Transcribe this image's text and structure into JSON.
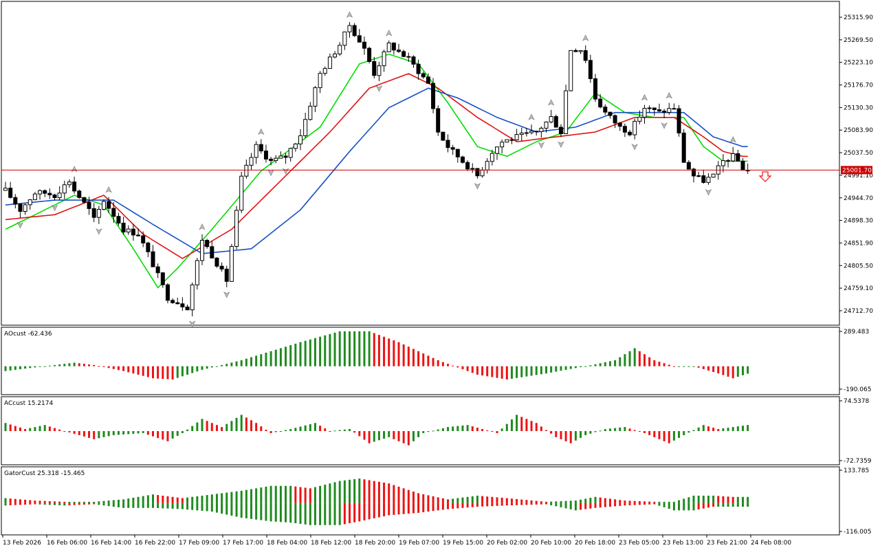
{
  "chart_data": [
    {
      "type": "candlestick",
      "ylim": [
        24690,
        25340
      ],
      "y_ticks": [
        "25315.90",
        "25269.50",
        "25223.10",
        "25176.70",
        "25130.30",
        "25083.90",
        "25037.50",
        "24991.10",
        "24944.70",
        "24898.30",
        "24851.90",
        "24805.50",
        "24759.10",
        "24712.70"
      ],
      "current_price_label": "25001.70",
      "current_price": 25001.7,
      "x_ticks": [
        "13 Feb 2026",
        "16 Feb 06:00",
        "16 Feb 14:00",
        "16 Feb 22:00",
        "17 Feb 09:00",
        "17 Feb 17:00",
        "18 Feb 04:00",
        "18 Feb 12:00",
        "18 Feb 20:00",
        "19 Feb 07:00",
        "19 Feb 15:00",
        "20 Feb 02:00",
        "20 Feb 10:00",
        "20 Feb 18:00",
        "23 Feb 05:00",
        "23 Feb 13:00",
        "23 Feb 21:00",
        "24 Feb 08:00"
      ],
      "anchors": [
        [
          0,
          24960
        ],
        [
          3,
          24920
        ],
        [
          6,
          24955
        ],
        [
          8,
          24955
        ],
        [
          10,
          24950
        ],
        [
          13,
          24980
        ],
        [
          14,
          24960
        ],
        [
          17,
          24920
        ],
        [
          18,
          24900
        ],
        [
          20,
          24940
        ],
        [
          24,
          24880
        ],
        [
          27,
          24870
        ],
        [
          29,
          24830
        ],
        [
          33,
          24740
        ],
        [
          35,
          24730
        ],
        [
          37,
          24720
        ],
        [
          40,
          24860
        ],
        [
          43,
          24810
        ],
        [
          45,
          24775
        ],
        [
          48,
          24985
        ],
        [
          51,
          25050
        ],
        [
          54,
          25020
        ],
        [
          57,
          25030
        ],
        [
          60,
          25075
        ],
        [
          64,
          25200
        ],
        [
          68,
          25260
        ],
        [
          70,
          25300
        ],
        [
          73,
          25250
        ],
        [
          75,
          25200
        ],
        [
          78,
          25260
        ],
        [
          82,
          25230
        ],
        [
          86,
          25180
        ],
        [
          88,
          25080
        ],
        [
          90,
          25050
        ],
        [
          93,
          25020
        ],
        [
          96,
          24990
        ],
        [
          99,
          25040
        ],
        [
          101,
          25060
        ],
        [
          104,
          25070
        ],
        [
          108,
          25080
        ],
        [
          111,
          25110
        ],
        [
          113,
          25080
        ],
        [
          115,
          25250
        ],
        [
          117,
          25250
        ],
        [
          118,
          25230
        ],
        [
          120,
          25150
        ],
        [
          122,
          25120
        ],
        [
          125,
          25090
        ],
        [
          127,
          25080
        ],
        [
          130,
          25130
        ],
        [
          133,
          25120
        ],
        [
          136,
          25130
        ],
        [
          138,
          25020
        ],
        [
          140,
          24990
        ],
        [
          142,
          24980
        ],
        [
          144,
          24990
        ],
        [
          146,
          25020
        ],
        [
          148,
          25030
        ],
        [
          149,
          25020
        ],
        [
          150,
          25005
        ],
        [
          151,
          25001.7
        ]
      ],
      "green_line": [
        [
          0,
          24880
        ],
        [
          8,
          24920
        ],
        [
          14,
          24950
        ],
        [
          20,
          24930
        ],
        [
          26,
          24840
        ],
        [
          31,
          24760
        ],
        [
          35,
          24800
        ],
        [
          42,
          24880
        ],
        [
          52,
          25000
        ],
        [
          64,
          25090
        ],
        [
          72,
          25220
        ],
        [
          78,
          25240
        ],
        [
          84,
          25220
        ],
        [
          90,
          25140
        ],
        [
          96,
          25050
        ],
        [
          102,
          25030
        ],
        [
          108,
          25060
        ],
        [
          114,
          25080
        ],
        [
          120,
          25160
        ],
        [
          126,
          25120
        ],
        [
          132,
          25110
        ],
        [
          138,
          25110
        ],
        [
          142,
          25050
        ],
        [
          146,
          25020
        ],
        [
          150,
          25020
        ]
      ],
      "red_line": [
        [
          0,
          24900
        ],
        [
          10,
          24910
        ],
        [
          20,
          24950
        ],
        [
          28,
          24870
        ],
        [
          36,
          24820
        ],
        [
          46,
          24880
        ],
        [
          58,
          25000
        ],
        [
          66,
          25080
        ],
        [
          74,
          25170
        ],
        [
          82,
          25200
        ],
        [
          88,
          25170
        ],
        [
          96,
          25110
        ],
        [
          104,
          25060
        ],
        [
          112,
          25070
        ],
        [
          120,
          25080
        ],
        [
          128,
          25110
        ],
        [
          136,
          25110
        ],
        [
          142,
          25070
        ],
        [
          146,
          25040
        ],
        [
          150,
          25030
        ]
      ],
      "blue_line": [
        [
          0,
          24930
        ],
        [
          10,
          24940
        ],
        [
          22,
          24940
        ],
        [
          30,
          24890
        ],
        [
          40,
          24830
        ],
        [
          50,
          24840
        ],
        [
          60,
          24920
        ],
        [
          70,
          25040
        ],
        [
          78,
          25130
        ],
        [
          86,
          25170
        ],
        [
          92,
          25150
        ],
        [
          100,
          25110
        ],
        [
          108,
          25080
        ],
        [
          116,
          25090
        ],
        [
          124,
          25120
        ],
        [
          132,
          25120
        ],
        [
          138,
          25120
        ],
        [
          144,
          25070
        ],
        [
          150,
          25050
        ]
      ]
    },
    {
      "type": "histogram",
      "title": "AOcust -62.436",
      "y_ticks": [
        "289.483",
        "-190.065"
      ],
      "ylim": [
        -190.065,
        289.483
      ],
      "anchors": [
        [
          0,
          -40
        ],
        [
          8,
          0
        ],
        [
          14,
          30
        ],
        [
          18,
          10
        ],
        [
          24,
          -40
        ],
        [
          30,
          -100
        ],
        [
          34,
          -110
        ],
        [
          40,
          -30
        ],
        [
          48,
          50
        ],
        [
          60,
          200
        ],
        [
          68,
          290
        ],
        [
          74,
          290
        ],
        [
          80,
          200
        ],
        [
          88,
          50
        ],
        [
          96,
          -70
        ],
        [
          102,
          -110
        ],
        [
          110,
          -60
        ],
        [
          118,
          0
        ],
        [
          124,
          50
        ],
        [
          128,
          150
        ],
        [
          132,
          50
        ],
        [
          136,
          0
        ],
        [
          140,
          0
        ],
        [
          145,
          -60
        ],
        [
          148,
          -100
        ],
        [
          151,
          -62
        ]
      ],
      "colors": {
        "up": "#1e8a1e",
        "down": "#ee1111"
      }
    },
    {
      "type": "histogram",
      "title": "ACcust 15.2174",
      "y_ticks": [
        "74.5378",
        "-72.7359"
      ],
      "ylim": [
        -72.7359,
        74.5378
      ],
      "anchors": [
        [
          0,
          20
        ],
        [
          4,
          5
        ],
        [
          8,
          15
        ],
        [
          12,
          0
        ],
        [
          18,
          -20
        ],
        [
          22,
          -10
        ],
        [
          28,
          -5
        ],
        [
          33,
          -25
        ],
        [
          36,
          -5
        ],
        [
          40,
          30
        ],
        [
          44,
          10
        ],
        [
          48,
          40
        ],
        [
          51,
          20
        ],
        [
          54,
          -5
        ],
        [
          58,
          5
        ],
        [
          63,
          20
        ],
        [
          66,
          0
        ],
        [
          70,
          5
        ],
        [
          74,
          -30
        ],
        [
          78,
          -15
        ],
        [
          82,
          -35
        ],
        [
          85,
          -5
        ],
        [
          90,
          10
        ],
        [
          94,
          15
        ],
        [
          97,
          5
        ],
        [
          100,
          -5
        ],
        [
          104,
          40
        ],
        [
          108,
          20
        ],
        [
          112,
          -15
        ],
        [
          115,
          -30
        ],
        [
          118,
          -10
        ],
        [
          122,
          5
        ],
        [
          126,
          10
        ],
        [
          130,
          -5
        ],
        [
          135,
          -30
        ],
        [
          138,
          -10
        ],
        [
          142,
          15
        ],
        [
          145,
          5
        ],
        [
          151,
          15
        ]
      ],
      "colors": {
        "up": "#1e8a1e",
        "down": "#ee1111"
      }
    },
    {
      "type": "histogram",
      "title": "GatorCust 25.318 -15.465",
      "y_ticks": [
        "133.785",
        "-116.005"
      ],
      "ylim": [
        -116.005,
        133.785
      ],
      "upper_anchors": [
        [
          0,
          20
        ],
        [
          6,
          10
        ],
        [
          12,
          5
        ],
        [
          18,
          5
        ],
        [
          24,
          15
        ],
        [
          30,
          35
        ],
        [
          36,
          20
        ],
        [
          42,
          35
        ],
        [
          48,
          50
        ],
        [
          54,
          70
        ],
        [
          58,
          70
        ],
        [
          62,
          60
        ],
        [
          68,
          90
        ],
        [
          72,
          100
        ],
        [
          78,
          80
        ],
        [
          84,
          40
        ],
        [
          90,
          15
        ],
        [
          96,
          30
        ],
        [
          102,
          20
        ],
        [
          110,
          5
        ],
        [
          116,
          10
        ],
        [
          120,
          25
        ],
        [
          126,
          10
        ],
        [
          132,
          5
        ],
        [
          136,
          5
        ],
        [
          140,
          30
        ],
        [
          144,
          30
        ],
        [
          148,
          25
        ],
        [
          151,
          25
        ]
      ],
      "lower_anchors": [
        [
          0,
          -10
        ],
        [
          6,
          -5
        ],
        [
          12,
          -10
        ],
        [
          18,
          -5
        ],
        [
          24,
          -20
        ],
        [
          30,
          -20
        ],
        [
          36,
          -25
        ],
        [
          42,
          -35
        ],
        [
          48,
          -60
        ],
        [
          54,
          -75
        ],
        [
          58,
          -80
        ],
        [
          62,
          -90
        ],
        [
          68,
          -90
        ],
        [
          72,
          -75
        ],
        [
          78,
          -50
        ],
        [
          84,
          -40
        ],
        [
          90,
          -25
        ],
        [
          96,
          -15
        ],
        [
          102,
          -10
        ],
        [
          110,
          -5
        ],
        [
          116,
          -30
        ],
        [
          120,
          -20
        ],
        [
          126,
          -10
        ],
        [
          132,
          -5
        ],
        [
          136,
          -30
        ],
        [
          140,
          -30
        ],
        [
          144,
          -15
        ],
        [
          148,
          -15
        ],
        [
          151,
          -15
        ]
      ],
      "colors": {
        "up": "#1e8a1e",
        "down": "#ee1111"
      }
    }
  ]
}
